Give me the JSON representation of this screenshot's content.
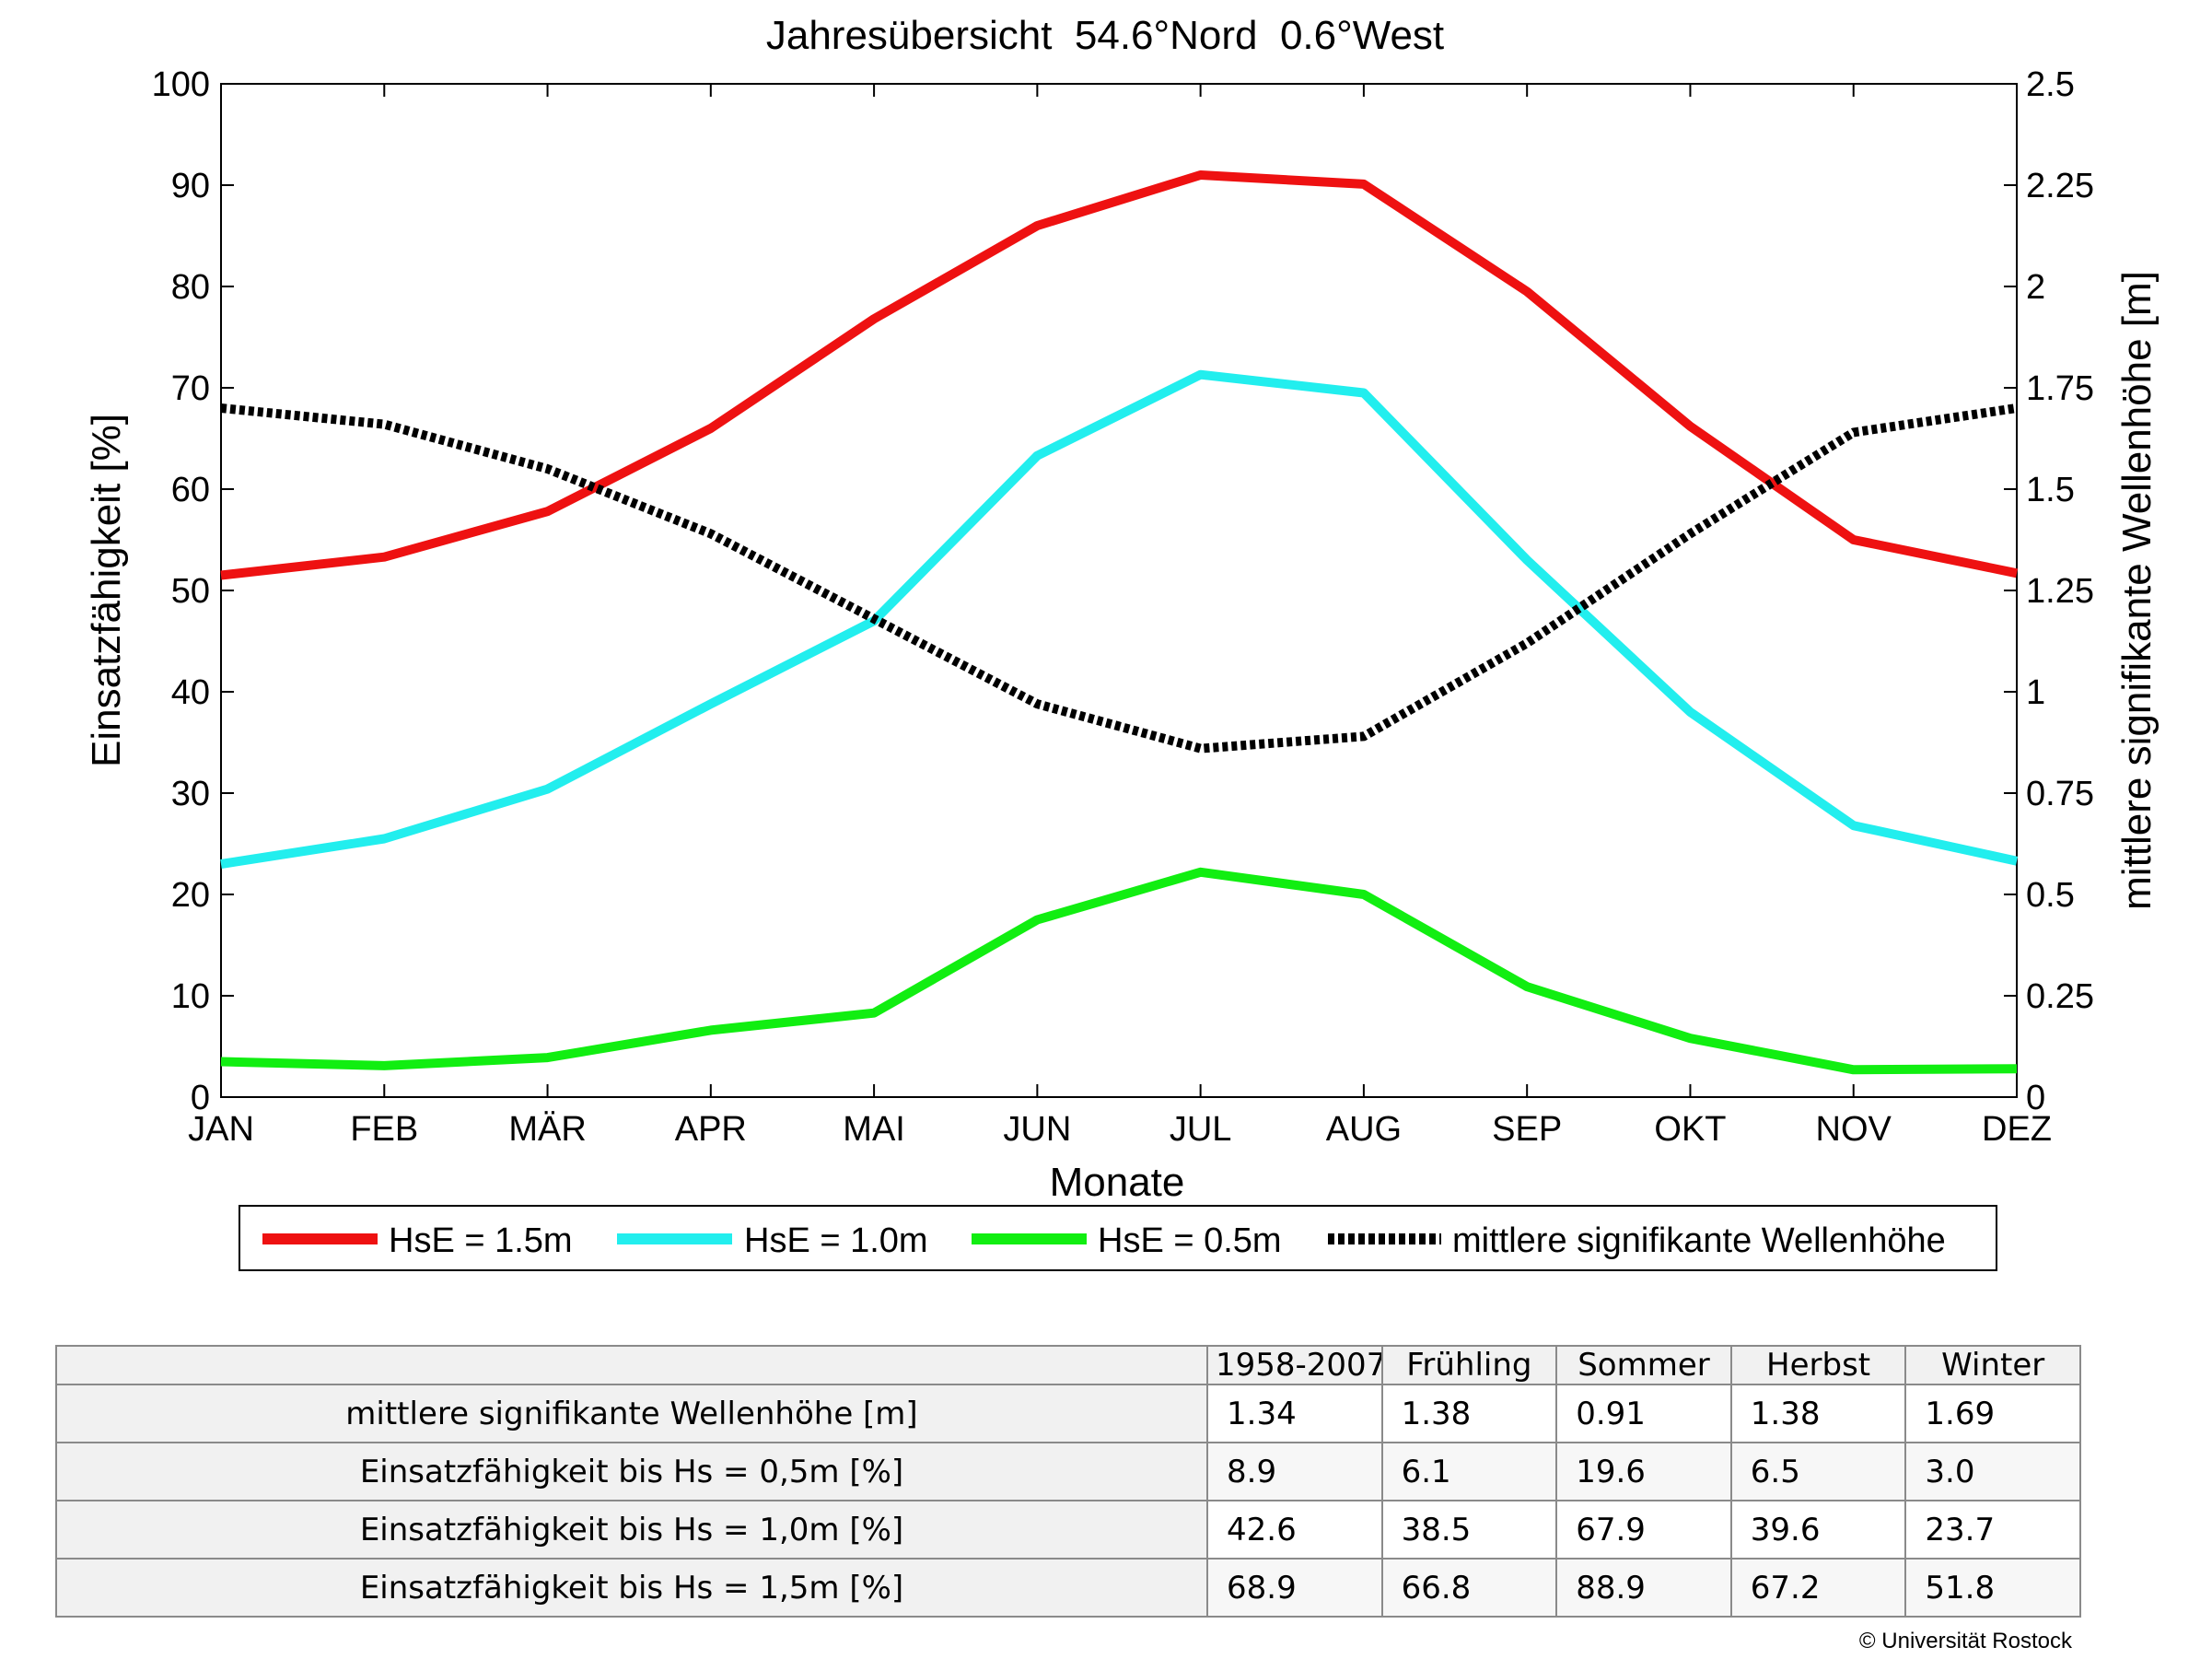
{
  "chart_data": {
    "type": "line",
    "title": "Jahresübersicht  54.6°Nord  0.6°West",
    "xlabel": "Monate",
    "ylabel": "Einsatzfähigkeit [%]",
    "y2label": "mittlere signifikante Wellenhöhe [m]",
    "categories": [
      "JAN",
      "FEB",
      "MÄR",
      "APR",
      "MAI",
      "JUN",
      "JUL",
      "AUG",
      "SEP",
      "OKT",
      "NOV",
      "DEZ"
    ],
    "ylim": [
      0,
      100
    ],
    "yticks": [
      "0",
      "10",
      "20",
      "30",
      "40",
      "50",
      "60",
      "70",
      "80",
      "90",
      "100"
    ],
    "y2lim": [
      0,
      2.5
    ],
    "y2ticks": [
      "0",
      "0.25",
      "0.5",
      "0.75",
      "1",
      "1.25",
      "1.5",
      "1.75",
      "2",
      "2.25",
      "2.5"
    ],
    "grid": false,
    "legend_position": "bottom",
    "series": [
      {
        "name": "HsE = 1.5m",
        "axis": "left",
        "color": "#ee1111",
        "style": "solid",
        "values": [
          51.5,
          53.3,
          57.8,
          66.0,
          76.8,
          86.0,
          91.0,
          90.1,
          79.5,
          66.2,
          55.0,
          51.7
        ]
      },
      {
        "name": "HsE = 1.0m",
        "axis": "left",
        "color": "#22eeee",
        "style": "solid",
        "values": [
          23.0,
          25.5,
          30.4,
          38.8,
          47.0,
          63.3,
          71.3,
          69.5,
          53.0,
          38.0,
          26.8,
          23.3
        ]
      },
      {
        "name": "HsE = 0.5m",
        "axis": "left",
        "color": "#11ee11",
        "style": "solid",
        "values": [
          3.5,
          3.1,
          3.9,
          6.6,
          8.3,
          17.5,
          22.2,
          20.0,
          10.9,
          5.8,
          2.7,
          2.8
        ]
      },
      {
        "name": "mittlere signifikante Wellenhöhe",
        "axis": "right",
        "color": "#000000",
        "style": "dotted",
        "values": [
          1.7,
          1.66,
          1.55,
          1.39,
          1.18,
          0.97,
          0.86,
          0.89,
          1.12,
          1.39,
          1.64,
          1.7
        ]
      }
    ]
  },
  "table": {
    "columns": [
      "1958-2007",
      "Frühling",
      "Sommer",
      "Herbst",
      "Winter"
    ],
    "rows": [
      {
        "label": "mittlere signifikante Wellenhöhe [m]",
        "values": [
          "1.34",
          "1.38",
          "0.91",
          "1.38",
          "1.69"
        ]
      },
      {
        "label": "Einsatzfähigkeit bis Hs = 0,5m [%]",
        "values": [
          "8.9",
          "6.1",
          "19.6",
          "6.5",
          "3.0"
        ]
      },
      {
        "label": "Einsatzfähigkeit bis Hs = 1,0m [%]",
        "values": [
          "42.6",
          "38.5",
          "67.9",
          "39.6",
          "23.7"
        ]
      },
      {
        "label": "Einsatzfähigkeit bis Hs = 1,5m [%]",
        "values": [
          "68.9",
          "66.8",
          "88.9",
          "67.2",
          "51.8"
        ]
      }
    ]
  },
  "copyright": "© Universität Rostock"
}
